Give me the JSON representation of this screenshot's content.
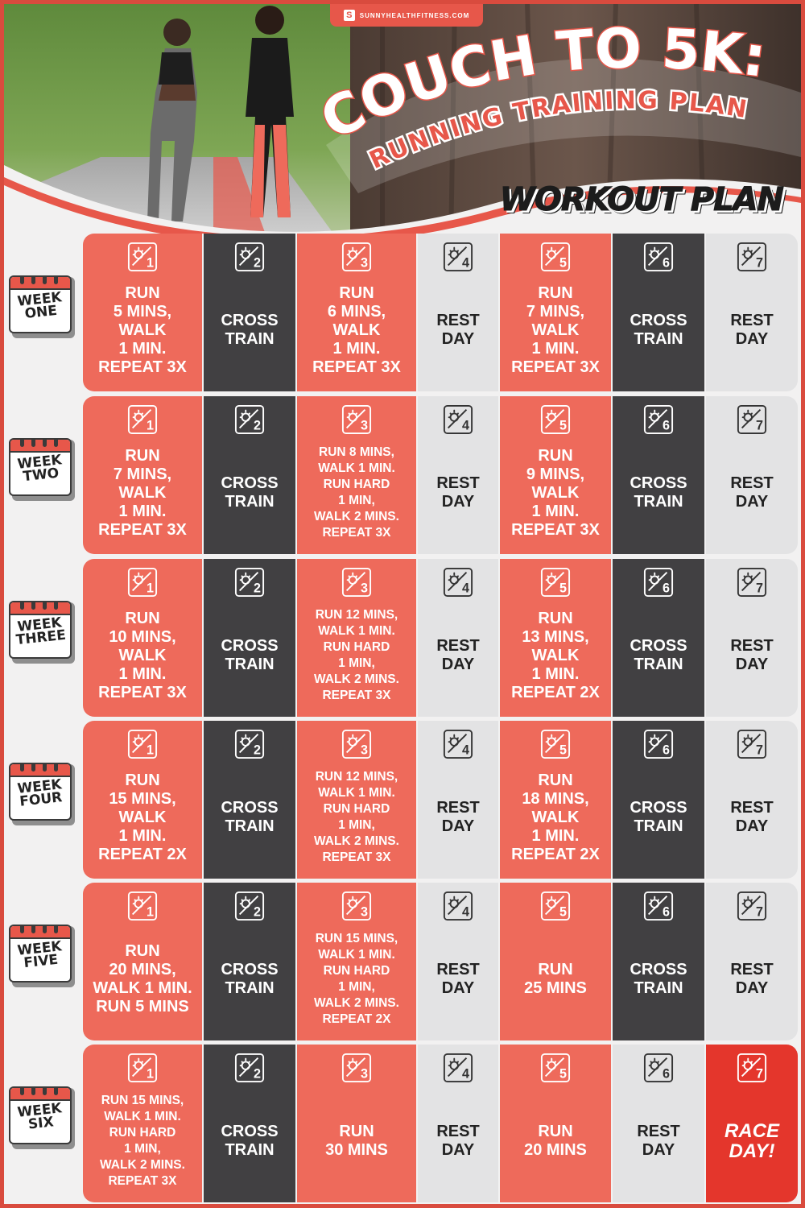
{
  "brand": "SUNNYHEALTHFITNESS.COM",
  "title_main": "COUCH TO 5K:",
  "title_sub": "RUNNING TRAINING PLAN",
  "section_title": "WORKOUT PLAN",
  "colors": {
    "accent_red": "#ee6a5b",
    "race_red": "#e4362c",
    "dark": "#414042",
    "light": "#e3e3e4",
    "frame": "#d94b3e"
  },
  "icon_name": "sun-calendar-day-icon",
  "weeks": [
    {
      "label_top": "WEEK",
      "label_bottom": "ONE",
      "days": [
        {
          "num": "1",
          "text": "RUN\n5 MINS,\nWALK\n1 MIN.\nREPEAT 3X"
        },
        {
          "num": "2",
          "text": "CROSS\nTRAIN"
        },
        {
          "num": "3",
          "text": "RUN\n6 MINS,\nWALK\n1 MIN.\nREPEAT 3X"
        },
        {
          "num": "4",
          "text": "REST\nDAY"
        },
        {
          "num": "5",
          "text": "RUN\n7 MINS,\nWALK\n1 MIN.\nREPEAT 3X"
        },
        {
          "num": "6",
          "text": "CROSS\nTRAIN"
        },
        {
          "num": "7",
          "text": "REST\nDAY"
        }
      ]
    },
    {
      "label_top": "WEEK",
      "label_bottom": "TWO",
      "days": [
        {
          "num": "1",
          "text": "RUN\n7 MINS,\nWALK\n1 MIN.\nREPEAT 3X"
        },
        {
          "num": "2",
          "text": "CROSS\nTRAIN"
        },
        {
          "num": "3",
          "text": "RUN 8 MINS,\nWALK 1 MIN.\nRUN HARD\n1 MIN,\nWALK 2 MINS.\nREPEAT 3X"
        },
        {
          "num": "4",
          "text": "REST\nDAY"
        },
        {
          "num": "5",
          "text": "RUN\n9 MINS,\nWALK\n1 MIN.\nREPEAT 3X"
        },
        {
          "num": "6",
          "text": "CROSS\nTRAIN"
        },
        {
          "num": "7",
          "text": "REST\nDAY"
        }
      ]
    },
    {
      "label_top": "WEEK",
      "label_bottom": "THREE",
      "days": [
        {
          "num": "1",
          "text": "RUN\n10 MINS,\nWALK\n1 MIN.\nREPEAT 3X"
        },
        {
          "num": "2",
          "text": "CROSS\nTRAIN"
        },
        {
          "num": "3",
          "text": "RUN 12 MINS,\nWALK 1 MIN.\nRUN HARD\n1 MIN,\nWALK 2 MINS.\nREPEAT 3X"
        },
        {
          "num": "4",
          "text": "REST\nDAY"
        },
        {
          "num": "5",
          "text": "RUN\n13 MINS,\nWALK\n1 MIN.\nREPEAT 2X"
        },
        {
          "num": "6",
          "text": "CROSS\nTRAIN"
        },
        {
          "num": "7",
          "text": "REST\nDAY"
        }
      ]
    },
    {
      "label_top": "WEEK",
      "label_bottom": "FOUR",
      "days": [
        {
          "num": "1",
          "text": "RUN\n15 MINS,\nWALK\n1 MIN.\nREPEAT 2X"
        },
        {
          "num": "2",
          "text": "CROSS\nTRAIN"
        },
        {
          "num": "3",
          "text": "RUN 12 MINS,\nWALK 1 MIN.\nRUN HARD\n1 MIN,\nWALK 2 MINS.\nREPEAT 3X"
        },
        {
          "num": "4",
          "text": "REST\nDAY"
        },
        {
          "num": "5",
          "text": "RUN\n18 MINS,\nWALK\n1 MIN.\nREPEAT 2X"
        },
        {
          "num": "6",
          "text": "CROSS\nTRAIN"
        },
        {
          "num": "7",
          "text": "REST\nDAY"
        }
      ]
    },
    {
      "label_top": "WEEK",
      "label_bottom": "FIVE",
      "days": [
        {
          "num": "1",
          "text": "RUN\n20 MINS,\nWALK 1 MIN.\nRUN 5 MINS"
        },
        {
          "num": "2",
          "text": "CROSS\nTRAIN"
        },
        {
          "num": "3",
          "text": "RUN 15 MINS,\nWALK 1 MIN.\nRUN HARD\n1 MIN,\nWALK 2 MINS.\nREPEAT 2X"
        },
        {
          "num": "4",
          "text": "REST\nDAY"
        },
        {
          "num": "5",
          "text": "RUN\n25 MINS"
        },
        {
          "num": "6",
          "text": "CROSS\nTRAIN"
        },
        {
          "num": "7",
          "text": "REST\nDAY"
        }
      ]
    },
    {
      "label_top": "WEEK",
      "label_bottom": "SIX",
      "days": [
        {
          "num": "1",
          "text": "RUN 15 MINS,\nWALK 1 MIN.\nRUN HARD\n1 MIN,\nWALK 2 MINS.\nREPEAT 3X"
        },
        {
          "num": "2",
          "text": "CROSS\nTRAIN"
        },
        {
          "num": "3",
          "text": "RUN\n30 MINS"
        },
        {
          "num": "4",
          "text": "REST\nDAY"
        },
        {
          "num": "5",
          "text": "RUN\n20 MINS"
        },
        {
          "num": "6",
          "text": "REST\nDAY"
        },
        {
          "num": "7",
          "text": "RACE\nDAY!"
        }
      ]
    }
  ]
}
